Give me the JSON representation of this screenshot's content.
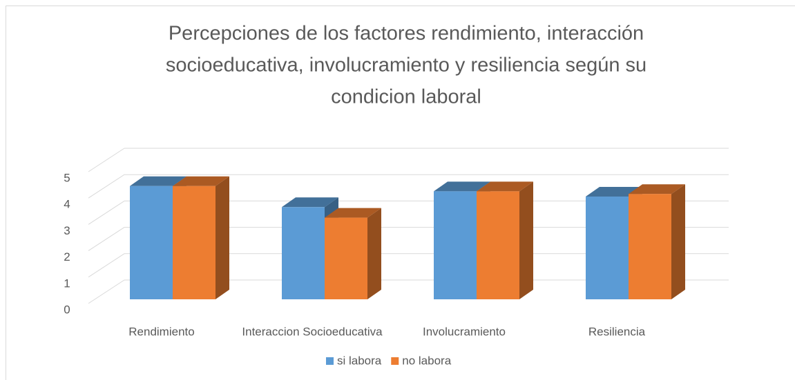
{
  "chart_data": {
    "type": "bar3d",
    "title": [
      "Percepciones de los factores rendimiento, interacción",
      "socioeducativa, involucramiento y resiliencia  según su",
      "condicion laboral"
    ],
    "categories": [
      "Rendimiento",
      "Interaccion Socioeducativa",
      "Involucramiento",
      "Resiliencia"
    ],
    "series": [
      {
        "name": "si labora",
        "color": "#5b9bd5",
        "values": [
          4.3,
          3.5,
          4.1,
          3.9
        ]
      },
      {
        "name": "no labora",
        "color": "#ed7d31",
        "values": [
          4.3,
          3.1,
          4.1,
          4.0
        ]
      }
    ],
    "ylim": [
      0,
      5
    ],
    "yticks": [
      0,
      1,
      2,
      3,
      4,
      5
    ],
    "grid": true,
    "legend": "bottom"
  }
}
